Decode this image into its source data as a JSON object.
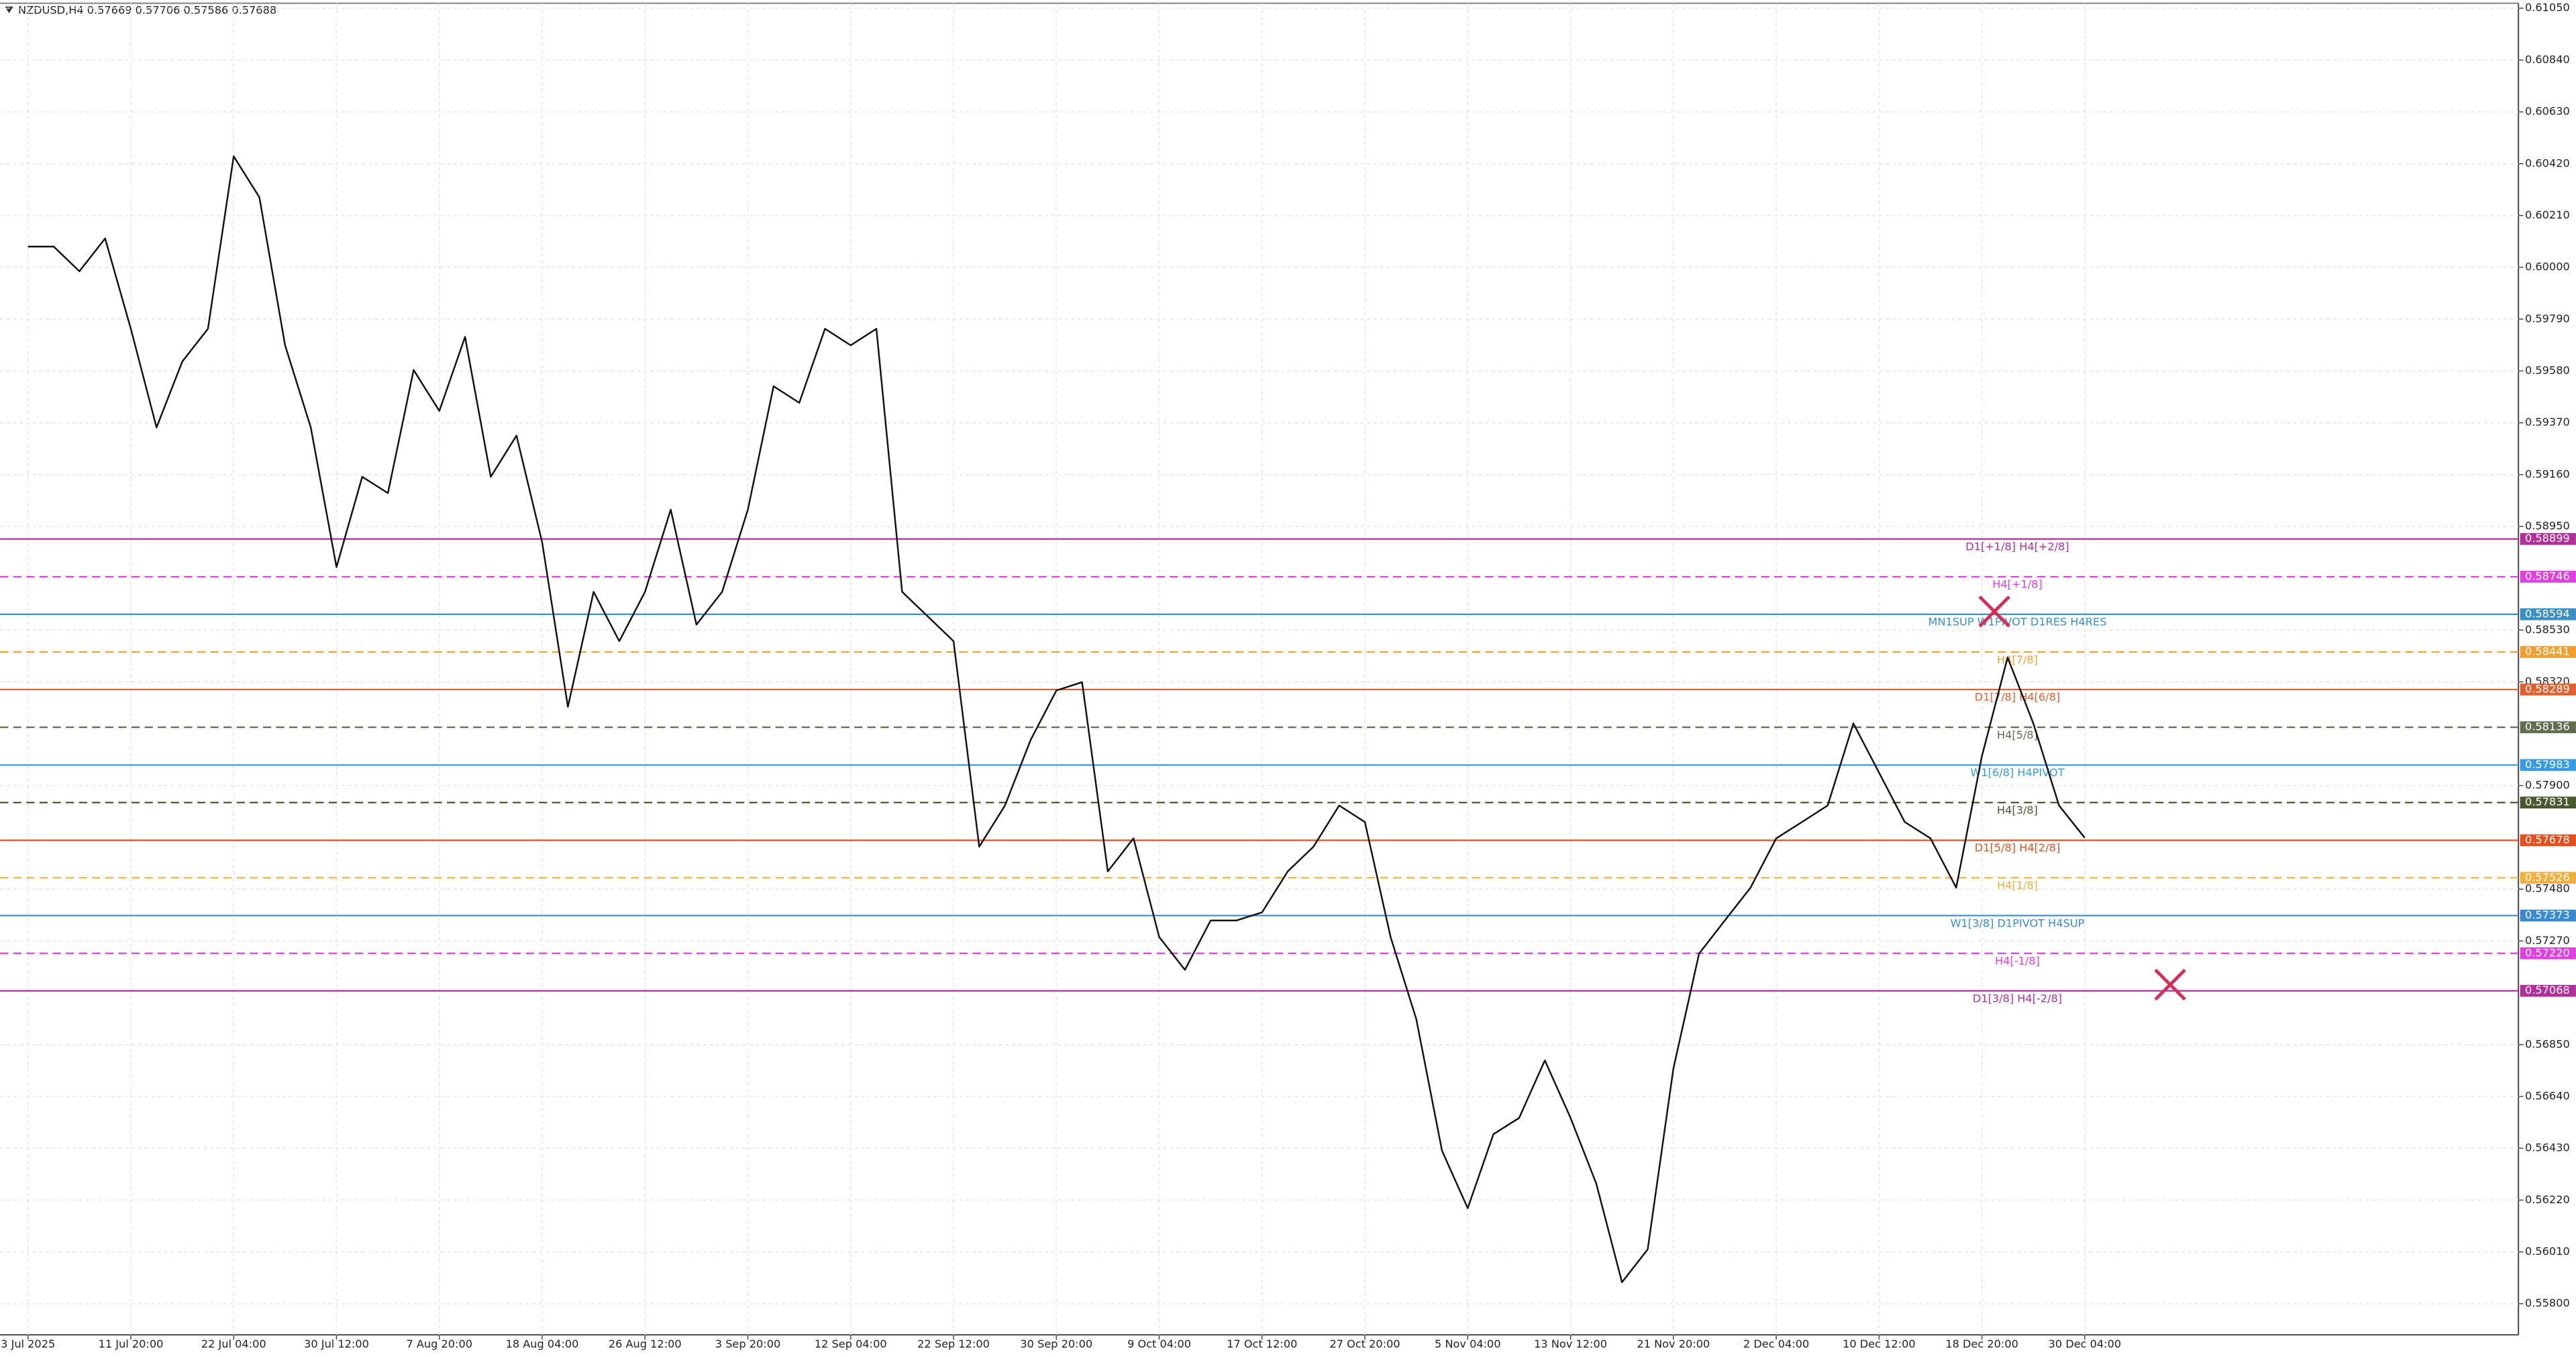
{
  "chart_data": {
    "type": "line",
    "header": "NZDUSD,H4  0.57669 0.57706 0.57586 0.57688",
    "color": "#111111",
    "grid": true,
    "categories": [
      "3 Jul 2025",
      null,
      null,
      null,
      "11 Jul 20:00",
      null,
      null,
      null,
      "22 Jul 04:00",
      null,
      null,
      null,
      "30 Jul 12:00",
      null,
      null,
      null,
      "7 Aug 20:00",
      null,
      null,
      null,
      "18 Aug 04:00",
      null,
      null,
      null,
      "26 Aug 12:00",
      null,
      null,
      null,
      "3 Sep 20:00",
      null,
      null,
      null,
      "12 Sep 04:00",
      null,
      null,
      null,
      "22 Sep 12:00",
      null,
      null,
      null,
      "30 Sep 20:00",
      null,
      null,
      null,
      "9 Oct 04:00",
      null,
      null,
      null,
      "17 Oct 12:00",
      null,
      null,
      null,
      "27 Oct 20:00",
      null,
      null,
      null,
      "5 Nov 04:00",
      null,
      null,
      null,
      "13 Nov 12:00",
      null,
      null,
      null,
      "21 Nov 20:00",
      null,
      null,
      null,
      "2 Dec 04:00",
      null,
      null,
      null,
      "10 Dec 12:00",
      null,
      null,
      null,
      "18 Dec 20:00",
      null,
      null,
      null,
      "30 Dec 04:00"
    ],
    "values": [
      0.60084,
      0.60084,
      0.59984,
      0.60117,
      0.59751,
      0.59351,
      0.59618,
      0.59751,
      0.6045,
      0.60284,
      0.59684,
      0.59351,
      0.58785,
      0.59151,
      0.59085,
      0.59584,
      0.59418,
      0.59718,
      0.59151,
      0.59318,
      0.58885,
      0.58219,
      0.58685,
      0.58485,
      0.58685,
      0.59018,
      0.58552,
      0.58685,
      0.59018,
      0.59518,
      0.59451,
      0.59751,
      0.59684,
      0.59751,
      0.58685,
      0.58585,
      0.58485,
      0.57652,
      0.57819,
      0.58085,
      0.58285,
      0.58319,
      0.57552,
      0.57686,
      0.57286,
      0.57153,
      0.57353,
      0.57353,
      0.57386,
      0.57552,
      0.57652,
      0.57819,
      0.57752,
      0.57286,
      0.56953,
      0.5642,
      0.56187,
      0.56487,
      0.56553,
      0.56786,
      0.56553,
      0.56287,
      0.55887,
      0.5602,
      0.56753,
      0.57219,
      0.57353,
      0.57486,
      0.57686,
      0.57752,
      0.57819,
      0.58152,
      0.57952,
      0.57752,
      0.57686,
      0.57486,
      0.58019,
      0.58419,
      0.58152,
      0.57819,
      0.57688
    ],
    "ylim": [
      0.55674,
      0.6107
    ],
    "yticks": [
      {
        "value": 0.6105,
        "label": "0.61050"
      },
      {
        "value": 0.6084,
        "label": "0.60840"
      },
      {
        "value": 0.6063,
        "label": "0.60630"
      },
      {
        "value": 0.6042,
        "label": "0.60420"
      },
      {
        "value": 0.6021,
        "label": "0.60210"
      },
      {
        "value": 0.6,
        "label": "0.60000"
      },
      {
        "value": 0.5979,
        "label": "0.59790"
      },
      {
        "value": 0.5958,
        "label": "0.59580"
      },
      {
        "value": 0.5937,
        "label": "0.59370"
      },
      {
        "value": 0.5916,
        "label": "0.59160"
      },
      {
        "value": 0.5895,
        "label": "0.58950"
      },
      {
        "value": 0.5853,
        "label": "0.58530"
      },
      {
        "value": 0.5832,
        "label": "0.58320"
      },
      {
        "value": 0.579,
        "label": "0.57900"
      },
      {
        "value": 0.5748,
        "label": "0.57480"
      },
      {
        "value": 0.5727,
        "label": "0.57270"
      },
      {
        "value": 0.5685,
        "label": "0.56850"
      },
      {
        "value": 0.5664,
        "label": "0.56640"
      },
      {
        "value": 0.5643,
        "label": "0.56430"
      },
      {
        "value": 0.5622,
        "label": "0.56220"
      },
      {
        "value": 0.5601,
        "label": "0.56010"
      },
      {
        "value": 0.558,
        "label": "0.55800"
      }
    ],
    "levels": [
      {
        "value": 0.58899,
        "price_label": "0.58899",
        "label": "D1[+1/8] H4[+2/8]",
        "color": "#b0309a",
        "dash": false
      },
      {
        "value": 0.58746,
        "price_label": "0.58746",
        "label": "H4[+1/8]",
        "color": "#e040e0",
        "dash": true
      },
      {
        "value": 0.58594,
        "price_label": "0.58594",
        "label": "MN1SUP W1PIVOT D1RES H4RES",
        "color": "#3a8fc4",
        "dash": false
      },
      {
        "value": 0.58441,
        "price_label": "0.58441",
        "label": "H4[7/8]",
        "color": "#f0a030",
        "dash": true
      },
      {
        "value": 0.58289,
        "price_label": "0.58289",
        "label": "D1[7/8] H4[6/8]",
        "color": "#e06030",
        "dash": false
      },
      {
        "value": 0.58136,
        "price_label": "0.58136",
        "label": "H4[5/8]",
        "color": "#5e6e4e",
        "dash": true
      },
      {
        "value": 0.57983,
        "price_label": "0.57983",
        "label": "W1[6/8] H4PIVOT",
        "color": "#3a9ae0",
        "dash": false
      },
      {
        "value": 0.57831,
        "price_label": "0.57831",
        "label": "H4[3/8]",
        "color": "#4a5a30",
        "dash": true
      },
      {
        "value": 0.57678,
        "price_label": "0.57678",
        "label": "D1[5/8] H4[2/8]",
        "color": "#e05020",
        "dash": false
      },
      {
        "value": 0.57526,
        "price_label": "0.57526",
        "label": "H4[1/8]",
        "color": "#f0b040",
        "dash": true
      },
      {
        "value": 0.57373,
        "price_label": "0.57373",
        "label": "W1[3/8] D1PIVOT H4SUP",
        "color": "#3a8ad0",
        "dash": false
      },
      {
        "value": 0.5722,
        "price_label": "0.57220",
        "label": "H4[-1/8]",
        "color": "#e040e0",
        "dash": true
      },
      {
        "value": 0.57068,
        "price_label": "0.57068",
        "label": "D1[3/8] H4[-2/8]",
        "color": "#b0309a",
        "dash": false
      }
    ]
  }
}
